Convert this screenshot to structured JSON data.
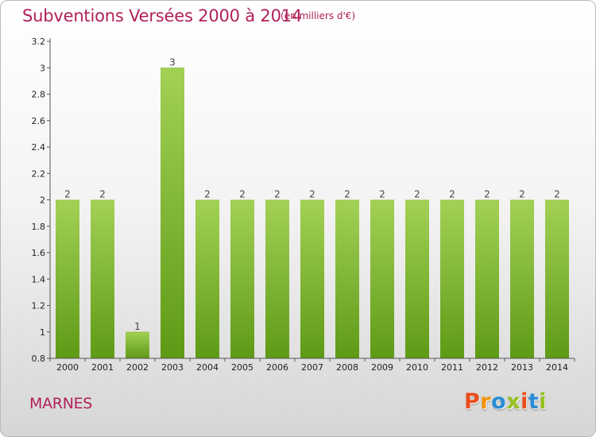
{
  "header": {
    "title": "Subventions Versées 2000 à 2014",
    "subtitle": "(en milliers d'€)"
  },
  "footer": {
    "commune": "MARNES",
    "logo_text": "Proxiti",
    "logo_colors": [
      "#e94e1b",
      "#f39200",
      "#2a8dd4",
      "#95c11f",
      "#e94e1b",
      "#2a8dd4",
      "#95c11f"
    ]
  },
  "colors": {
    "title": "#b0215a",
    "bar_light": "#a3d155",
    "bar_dark": "#5e9a16",
    "axis": "#555555"
  },
  "chart_data": {
    "type": "bar",
    "categories": [
      "2000",
      "2001",
      "2002",
      "2003",
      "2004",
      "2005",
      "2006",
      "2007",
      "2008",
      "2009",
      "2010",
      "2011",
      "2012",
      "2013",
      "2014"
    ],
    "values": [
      2,
      2,
      1,
      3,
      2,
      2,
      2,
      2,
      2,
      2,
      2,
      2,
      2,
      2,
      2
    ],
    "value_labels": [
      "2",
      "2",
      "1",
      "3",
      "2",
      "2",
      "2",
      "2",
      "2",
      "2",
      "2",
      "2",
      "2",
      "2",
      "2"
    ],
    "y_ticks": [
      "0.8",
      "1",
      "1.2",
      "1.4",
      "1.6",
      "1.8",
      "2",
      "2.2",
      "2.4",
      "2.6",
      "2.8",
      "3",
      "3.2"
    ],
    "ylim": [
      0.8,
      3.2
    ],
    "grid": false,
    "title": "Subventions Versées 2000 à 2014",
    "xlabel": "",
    "ylabel": ""
  }
}
